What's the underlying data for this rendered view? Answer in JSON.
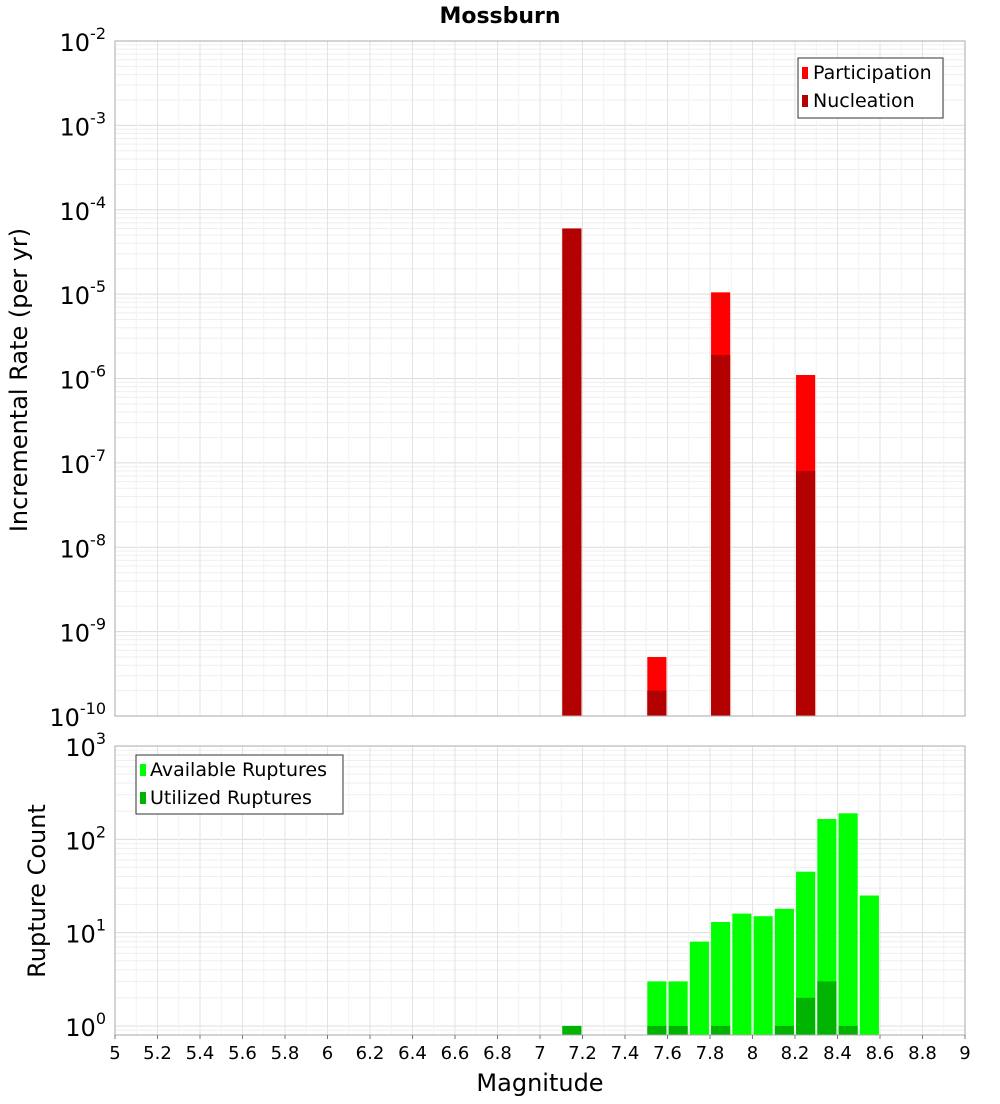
{
  "chart_data": [
    {
      "type": "bar",
      "title": "Mossburn",
      "xlabel": "Magnitude",
      "ylabel": "Incremental Rate (per yr)",
      "y_scale": "log",
      "ylim": [
        1e-10,
        0.01
      ],
      "xlim": [
        5,
        9
      ],
      "grid": true,
      "legend_placement": "top-right",
      "y_tick_labels": [
        {
          "base": "10",
          "exp": "-2",
          "value": 0.01
        },
        {
          "base": "10",
          "exp": "-3",
          "value": 0.001
        },
        {
          "base": "10",
          "exp": "-4",
          "value": 0.0001
        },
        {
          "base": "10",
          "exp": "-5",
          "value": 1e-05
        },
        {
          "base": "10",
          "exp": "-6",
          "value": 1e-06
        },
        {
          "base": "10",
          "exp": "-7",
          "value": 1e-07
        },
        {
          "base": "10",
          "exp": "-8",
          "value": 1e-08
        },
        {
          "base": "10",
          "exp": "-9",
          "value": 1e-09
        },
        {
          "base": "10",
          "exp": "-10",
          "value": 1e-10
        }
      ],
      "series": [
        {
          "name": "Participation",
          "color": "#ff0000",
          "points": [
            {
              "x": 7.15,
              "y": 6e-05
            },
            {
              "x": 7.55,
              "y": 5e-10
            },
            {
              "x": 7.85,
              "y": 1.05e-05
            },
            {
              "x": 8.25,
              "y": 1.1e-06
            }
          ]
        },
        {
          "name": "Nucleation",
          "color": "#b30000",
          "points": [
            {
              "x": 7.15,
              "y": 6e-05
            },
            {
              "x": 7.55,
              "y": 2e-10
            },
            {
              "x": 7.85,
              "y": 1.9e-06
            },
            {
              "x": 8.25,
              "y": 8e-08
            }
          ]
        }
      ]
    },
    {
      "type": "bar",
      "title": "",
      "xlabel": "Magnitude",
      "ylabel": "Rupture Count",
      "y_scale": "log",
      "ylim": [
        0.8,
        1000
      ],
      "xlim": [
        5,
        9
      ],
      "grid": true,
      "legend_placement": "top-left",
      "x_tick_labels": [
        "5",
        "5.2",
        "5.4",
        "5.6",
        "5.8",
        "6",
        "6.2",
        "6.4",
        "6.6",
        "6.8",
        "7",
        "7.2",
        "7.4",
        "7.6",
        "7.8",
        "8",
        "8.2",
        "8.4",
        "8.6",
        "8.8",
        "9"
      ],
      "y_tick_labels": [
        {
          "base": "10",
          "exp": "3",
          "value": 1000
        },
        {
          "base": "10",
          "exp": "2",
          "value": 100
        },
        {
          "base": "10",
          "exp": "1",
          "value": 10
        },
        {
          "base": "10",
          "exp": "0",
          "value": 1
        }
      ],
      "series": [
        {
          "name": "Available Ruptures",
          "color": "#00ff00",
          "points": [
            {
              "x": 7.15,
              "y": 1
            },
            {
              "x": 7.55,
              "y": 3
            },
            {
              "x": 7.65,
              "y": 3
            },
            {
              "x": 7.75,
              "y": 8
            },
            {
              "x": 7.85,
              "y": 13
            },
            {
              "x": 7.95,
              "y": 16
            },
            {
              "x": 8.05,
              "y": 15
            },
            {
              "x": 8.15,
              "y": 18
            },
            {
              "x": 8.25,
              "y": 45
            },
            {
              "x": 8.35,
              "y": 165
            },
            {
              "x": 8.45,
              "y": 190
            },
            {
              "x": 8.55,
              "y": 25
            }
          ]
        },
        {
          "name": "Utilized Ruptures",
          "color": "#00b300",
          "points": [
            {
              "x": 7.15,
              "y": 1
            },
            {
              "x": 7.55,
              "y": 1
            },
            {
              "x": 7.65,
              "y": 1
            },
            {
              "x": 7.85,
              "y": 1
            },
            {
              "x": 8.15,
              "y": 1
            },
            {
              "x": 8.25,
              "y": 2
            },
            {
              "x": 8.35,
              "y": 3
            },
            {
              "x": 8.45,
              "y": 1
            }
          ]
        }
      ]
    }
  ]
}
